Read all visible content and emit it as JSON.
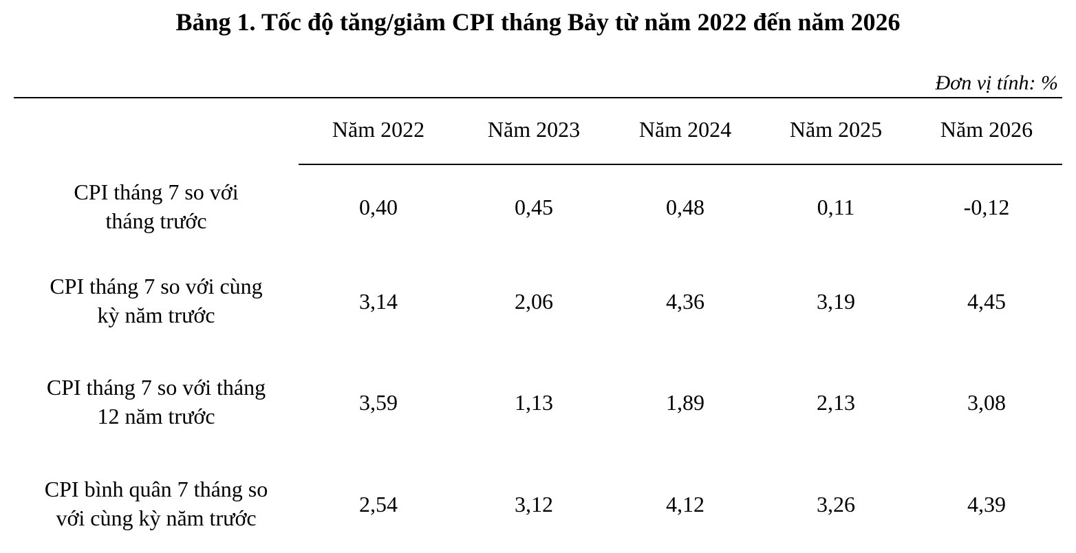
{
  "title": "Bảng 1. Tốc độ tăng/giảm CPI tháng Bảy từ năm 2022 đến năm 2026",
  "unit": "Đơn vị tính: %",
  "columns": [
    "Năm 2022",
    "Năm 2023",
    "Năm 2024",
    "Năm 2025",
    "Năm 2026"
  ],
  "rows": [
    {
      "label_line1": "CPI tháng 7 so với",
      "label_line2": "tháng trước",
      "values": [
        "0,40",
        "0,45",
        "0,48",
        "0,11",
        "-0,12"
      ]
    },
    {
      "label_line1": "CPI tháng 7 so với cùng",
      "label_line2": "kỳ năm trước",
      "values": [
        "3,14",
        "2,06",
        "4,36",
        "3,19",
        "4,45"
      ]
    },
    {
      "label_line1": "CPI tháng 7 so với tháng",
      "label_line2": "12 năm trước",
      "values": [
        "3,59",
        "1,13",
        "1,89",
        "2,13",
        "3,08"
      ]
    },
    {
      "label_line1": "CPI bình quân 7 tháng so",
      "label_line2": "với cùng kỳ năm trước",
      "values": [
        "2,54",
        "3,12",
        "4,12",
        "3,26",
        "4,39"
      ]
    }
  ]
}
